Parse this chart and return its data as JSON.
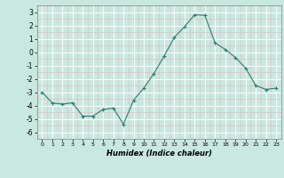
{
  "x": [
    0,
    1,
    2,
    3,
    4,
    5,
    6,
    7,
    8,
    9,
    10,
    11,
    12,
    13,
    14,
    15,
    16,
    17,
    18,
    19,
    20,
    21,
    22,
    23
  ],
  "y": [
    -3.0,
    -3.8,
    -3.9,
    -3.8,
    -4.8,
    -4.8,
    -4.3,
    -4.2,
    -5.4,
    -3.6,
    -2.7,
    -1.6,
    -0.3,
    1.1,
    1.9,
    2.8,
    2.75,
    0.7,
    0.2,
    -0.4,
    -1.2,
    -2.5,
    -2.8,
    -2.7
  ],
  "xlim": [
    -0.5,
    23.5
  ],
  "ylim": [
    -6.5,
    3.5
  ],
  "yticks": [
    -6,
    -5,
    -4,
    -3,
    -2,
    -1,
    0,
    1,
    2,
    3
  ],
  "xticks": [
    0,
    1,
    2,
    3,
    4,
    5,
    6,
    7,
    8,
    9,
    10,
    11,
    12,
    13,
    14,
    15,
    16,
    17,
    18,
    19,
    20,
    21,
    22,
    23
  ],
  "xlabel": "Humidex (Indice chaleur)",
  "line_color": "#2e7d6e",
  "marker": "+",
  "marker_size": 3,
  "bg_color": "#c8e8e0",
  "grid_major_color": "#ffffff",
  "grid_minor_color": "#e8b8b8",
  "spine_color": "#888888"
}
